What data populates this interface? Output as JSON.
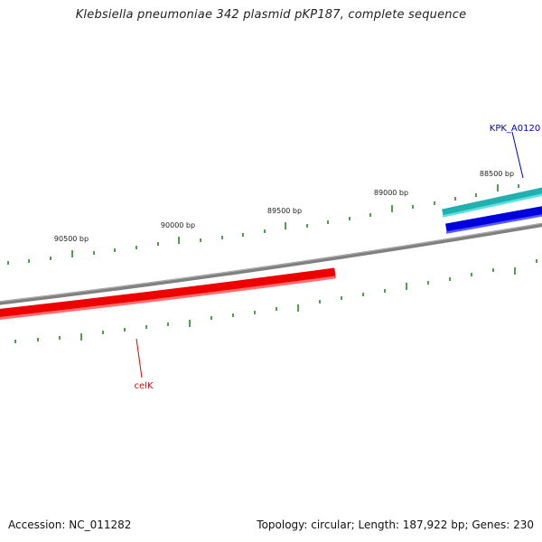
{
  "map": {
    "title": "Klebsiella pneumoniae 342 plasmid pKP187, complete sequence",
    "ruler_labels": [
      "88500 bp",
      "89000 bp",
      "89500 bp",
      "90000 bp",
      "90500 bp"
    ],
    "features": [
      {
        "label": "KPK_A0120",
        "color": "#0000cc"
      },
      {
        "label": "celK",
        "color": "#dd0000"
      }
    ],
    "colors": {
      "backbone": "#808080",
      "ticks": "#1a7a1a",
      "cyan_feature": "#20b0b0",
      "blue_feature": "#0000dd",
      "red_feature": "#ee0000"
    }
  },
  "footer": {
    "accession": "Accession: NC_011282",
    "summary": "Topology: circular; Length: 187,922 bp; Genes: 230"
  }
}
